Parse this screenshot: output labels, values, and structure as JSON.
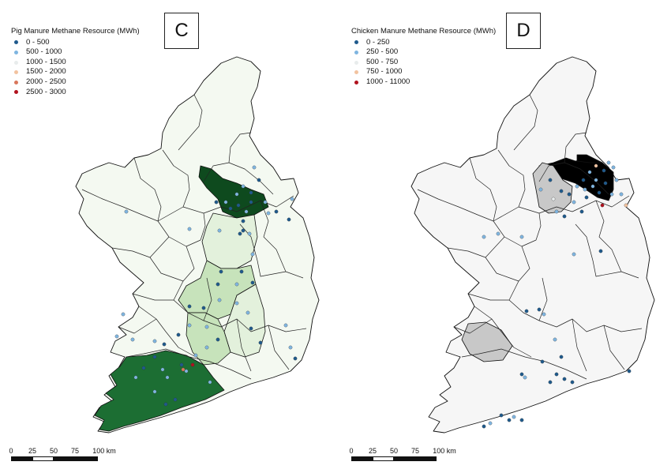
{
  "panels": [
    {
      "label": "C",
      "legend_title": "Pig Manure Methane Resource (MWh)",
      "legend": [
        {
          "range": "0 - 500",
          "color": "#1f5a8c"
        },
        {
          "range": "500 - 1000",
          "color": "#7fb5e0"
        },
        {
          "range": "1000 - 1500",
          "color": "#e8ecec"
        },
        {
          "range": "1500 - 2000",
          "color": "#f2c3a0"
        },
        {
          "range": "2000 - 2500",
          "color": "#d9775c"
        },
        {
          "range": "2500 - 3000",
          "color": "#b1121e"
        }
      ],
      "region_colors": {
        "default": "#f4f9f1",
        "light": "#e3f1dc",
        "mid": "#c7e3bb",
        "dark": "#1c6e33",
        "darkest": "#0e4a1e"
      }
    },
    {
      "label": "D",
      "legend_title": "Chicken Manure Methane Resource (MWh)",
      "legend": [
        {
          "range": "0 - 250",
          "color": "#1f5a8c"
        },
        {
          "range": "250 - 500",
          "color": "#7fb5e0"
        },
        {
          "range": "500 - 750",
          "color": "#e8ecec"
        },
        {
          "range": "750 - 1000",
          "color": "#f2c3a0"
        },
        {
          "range": "1000 - 11000",
          "color": "#b1121e"
        }
      ],
      "region_colors": {
        "default": "#f6f6f6",
        "grey": "#c8c8c8",
        "black": "#000000"
      }
    }
  ],
  "scale_bar": {
    "ticks": [
      "0",
      "25",
      "50",
      "75",
      "100 km"
    ]
  }
}
